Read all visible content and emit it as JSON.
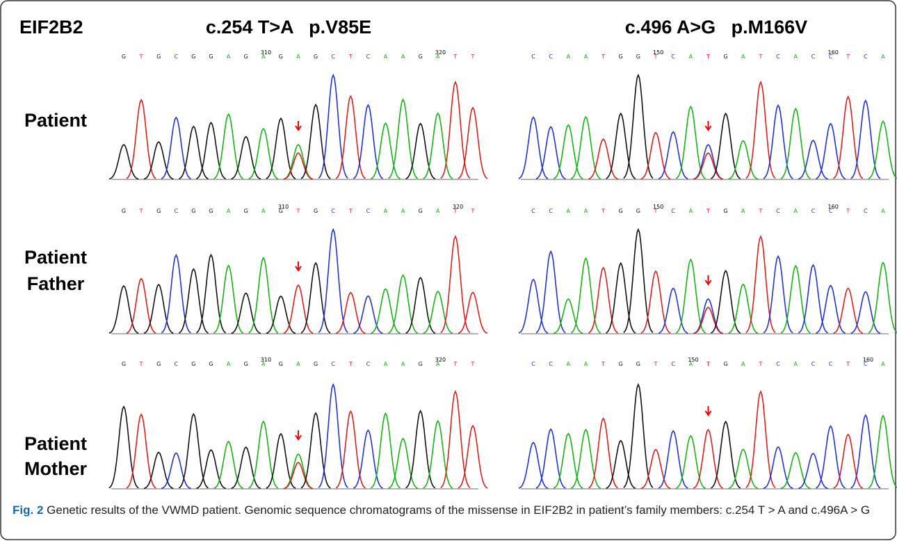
{
  "figure": {
    "gene": "EIF2B2",
    "variants": [
      "c.254 T>A   p.V85E",
      "c.496 A>G   p.M166V"
    ],
    "rows": [
      {
        "label": [
          "Patient"
        ],
        "panels": [
          {
            "bases": [
              "G",
              "T",
              "G",
              "C",
              "G",
              "G",
              "A",
              "G",
              "A",
              "G",
              "A",
              "G",
              "C",
              "T",
              "C",
              "A",
              "A",
              "G",
              "A",
              "T",
              "T"
            ],
            "positions": [
              "310",
              "320"
            ]
          },
          {
            "bases": [
              "C",
              "C",
              "A",
              "A",
              "T",
              "G",
              "G",
              "T",
              "C",
              "A",
              "T",
              "G",
              "A",
              "T",
              "C",
              "A",
              "C",
              "C",
              "T",
              "C",
              "A"
            ],
            "positions": [
              "150",
              "160"
            ]
          }
        ]
      },
      {
        "label": [
          "Patient",
          "Father"
        ],
        "panels": [
          {
            "bases": [
              "G",
              "T",
              "G",
              "C",
              "G",
              "G",
              "A",
              "G",
              "A",
              "G",
              "T",
              "G",
              "C",
              "T",
              "C",
              "A",
              "A",
              "G",
              "A",
              "T",
              "T"
            ],
            "positions": [
              "310",
              "320"
            ]
          },
          {
            "bases": [
              "C",
              "C",
              "A",
              "A",
              "T",
              "G",
              "G",
              "T",
              "C",
              "A",
              "T",
              "G",
              "A",
              "T",
              "C",
              "A",
              "C",
              "C",
              "T",
              "C",
              "A"
            ],
            "positions": [
              "150",
              "160"
            ]
          }
        ]
      },
      {
        "label": [
          "Patient",
          "Mother"
        ],
        "panels": [
          {
            "bases": [
              "G",
              "T",
              "G",
              "C",
              "G",
              "G",
              "A",
              "G",
              "A",
              "G",
              "A",
              "G",
              "C",
              "T",
              "C",
              "A",
              "A",
              "G",
              "A",
              "T",
              "T"
            ],
            "positions": [
              "310",
              "320"
            ]
          },
          {
            "bases": [
              "C",
              "C",
              "A",
              "A",
              "T",
              "G",
              "G",
              "T",
              "C",
              "A",
              "T",
              "G",
              "A",
              "T",
              "C",
              "A",
              "C",
              "C",
              "T",
              "C",
              "A"
            ],
            "positions": [
              "150",
              "160"
            ]
          }
        ]
      }
    ],
    "caption": {
      "label": "Fig. 2",
      "text": "Genetic results of the VWMD patient. Genomic sequence chromatograms of the missense in EIF2B2 in patient’s family members: c.254 T > A and c.496A > G"
    }
  }
}
